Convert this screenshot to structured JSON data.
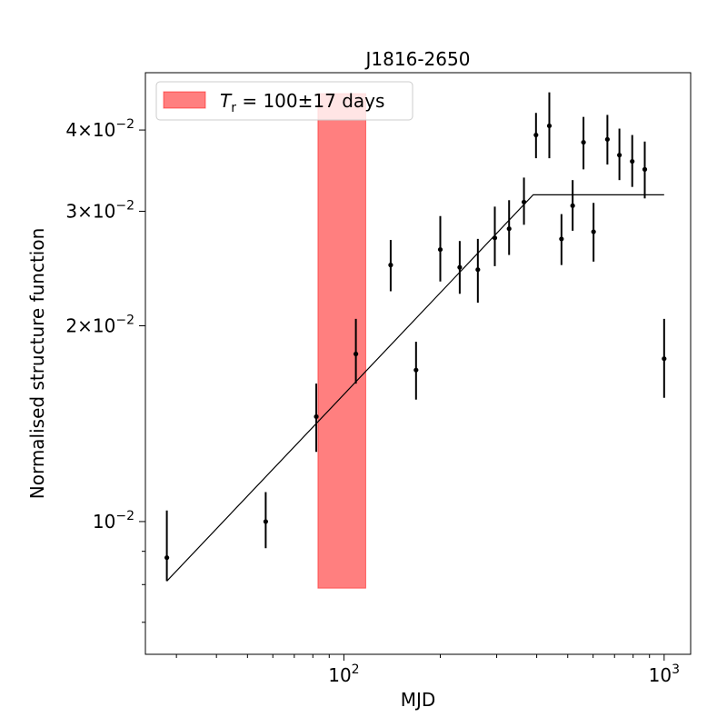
{
  "chart_data": {
    "type": "scatter",
    "title": "J1816-2650",
    "xlabel": "MJD",
    "ylabel": "Normalised structure function",
    "xscale": "log",
    "yscale": "log",
    "xlim": [
      24,
      1210
    ],
    "ylim": [
      0.00625,
      0.049
    ],
    "grid": false,
    "x_ticks": [
      {
        "value": 100,
        "base": "10",
        "exp": "2"
      },
      {
        "value": 1000,
        "base": "10",
        "exp": "3"
      }
    ],
    "y_ticks": [
      {
        "value": 0.01,
        "mant": "",
        "base": "10",
        "exp": "−2"
      },
      {
        "value": 0.02,
        "mant": "2",
        "base": "10",
        "exp": "−2"
      },
      {
        "value": 0.03,
        "mant": "3",
        "base": "10",
        "exp": "−2"
      },
      {
        "value": 0.04,
        "mant": "4",
        "base": "10",
        "exp": "−2"
      }
    ],
    "y_minor_ticks": [
      0.007,
      0.008,
      0.009,
      0.05,
      0.06
    ],
    "band": {
      "label_sym": "T",
      "label_sub": "r",
      "label_text": " = 100±17 days",
      "x_range": [
        83,
        117
      ],
      "y_range": [
        0.0079,
        0.0455
      ],
      "color": "#ff0000",
      "opacity": 0.5
    },
    "series": [
      {
        "type": "errorbar",
        "color": "#000000",
        "points": [
          {
            "x": 28,
            "y": 0.0088,
            "yerr": [
              0.0081,
              0.0104
            ]
          },
          {
            "x": 57,
            "y": 0.01,
            "yerr": [
              0.0091,
              0.0111
            ]
          },
          {
            "x": 82,
            "y": 0.0145,
            "yerr": [
              0.0128,
              0.0163
            ]
          },
          {
            "x": 109,
            "y": 0.0181,
            "yerr": [
              0.0163,
              0.0205
            ]
          },
          {
            "x": 140,
            "y": 0.0248,
            "yerr": [
              0.0226,
              0.0271
            ]
          },
          {
            "x": 168,
            "y": 0.0171,
            "yerr": [
              0.0154,
              0.0189
            ]
          },
          {
            "x": 200,
            "y": 0.0262,
            "yerr": [
              0.0234,
              0.0295
            ]
          },
          {
            "x": 230,
            "y": 0.0246,
            "yerr": [
              0.0224,
              0.027
            ]
          },
          {
            "x": 262,
            "y": 0.0244,
            "yerr": [
              0.0217,
              0.0272
            ]
          },
          {
            "x": 296,
            "y": 0.0273,
            "yerr": [
              0.0247,
              0.0305
            ]
          },
          {
            "x": 328,
            "y": 0.0282,
            "yerr": [
              0.0257,
              0.0312
            ]
          },
          {
            "x": 365,
            "y": 0.031,
            "yerr": [
              0.0286,
              0.0338
            ]
          },
          {
            "x": 398,
            "y": 0.0393,
            "yerr": [
              0.0362,
              0.0425
            ]
          },
          {
            "x": 438,
            "y": 0.0406,
            "yerr": [
              0.0362,
              0.0457
            ]
          },
          {
            "x": 478,
            "y": 0.0272,
            "yerr": [
              0.0248,
              0.0297
            ]
          },
          {
            "x": 518,
            "y": 0.0306,
            "yerr": [
              0.028,
              0.0335
            ]
          },
          {
            "x": 560,
            "y": 0.0383,
            "yerr": [
              0.0348,
              0.0419
            ]
          },
          {
            "x": 602,
            "y": 0.0279,
            "yerr": [
              0.0251,
              0.0309
            ]
          },
          {
            "x": 665,
            "y": 0.0387,
            "yerr": [
              0.0354,
              0.0422
            ]
          },
          {
            "x": 725,
            "y": 0.0366,
            "yerr": [
              0.0335,
              0.0402
            ]
          },
          {
            "x": 795,
            "y": 0.0358,
            "yerr": [
              0.0327,
              0.0393
            ]
          },
          {
            "x": 870,
            "y": 0.0348,
            "yerr": [
              0.0314,
              0.0384
            ]
          },
          {
            "x": 1000,
            "y": 0.0178,
            "yerr": [
              0.0155,
              0.0205
            ]
          }
        ]
      },
      {
        "type": "line",
        "color": "#000000",
        "x": [
          28,
          390,
          1000
        ],
        "y": [
          0.0081,
          0.0318,
          0.0318
        ]
      }
    ]
  }
}
